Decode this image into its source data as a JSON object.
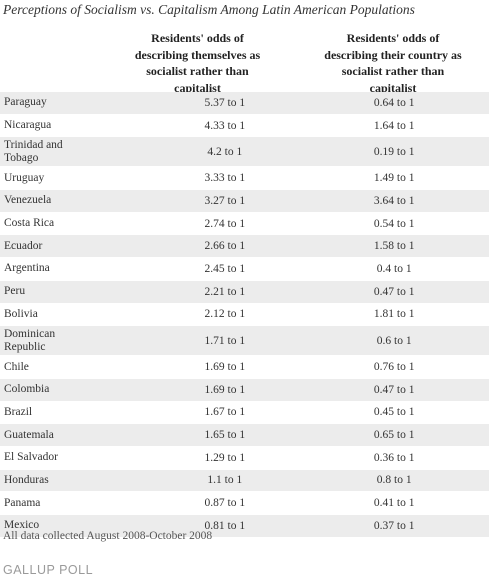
{
  "title": "Perceptions of Socialism vs. Capitalism Among Latin American Populations",
  "table": {
    "headers": [
      [
        "Residents' odds of",
        "describing themselves as",
        "socialist rather than",
        "capitalist"
      ],
      [
        "Residents' odds of",
        "describing their country as",
        "socialist rather than",
        "capitalist"
      ]
    ],
    "rows": [
      [
        "Paraguay",
        "5.37 to 1",
        "0.64 to 1"
      ],
      [
        "Nicaragua",
        "4.33 to 1",
        "1.64 to 1"
      ],
      [
        "Trinidad and Tobago",
        "4.2 to 1",
        "0.19 to 1"
      ],
      [
        "Uruguay",
        "3.33 to 1",
        "1.49 to 1"
      ],
      [
        "Venezuela",
        "3.27 to 1",
        "3.64 to 1"
      ],
      [
        "Costa Rica",
        "2.74 to 1",
        "0.54 to 1"
      ],
      [
        "Ecuador",
        "2.66 to 1",
        "1.58 to 1"
      ],
      [
        "Argentina",
        "2.45 to 1",
        "0.4 to 1"
      ],
      [
        "Peru",
        "2.21 to 1",
        "0.47 to 1"
      ],
      [
        "Bolivia",
        "2.12 to 1",
        "1.81 to 1"
      ],
      [
        "Dominican Republic",
        "1.71 to 1",
        "0.6 to 1"
      ],
      [
        "Chile",
        "1.69 to 1",
        "0.76 to 1"
      ],
      [
        "Colombia",
        "1.69 to 1",
        "0.47 to 1"
      ],
      [
        "Brazil",
        "1.67 to 1",
        "0.45 to 1"
      ],
      [
        "Guatemala",
        "1.65 to 1",
        "0.65 to 1"
      ],
      [
        "El Salvador",
        "1.29 to 1",
        "0.36 to 1"
      ],
      [
        "Honduras",
        "1.1 to 1",
        "0.8 to 1"
      ],
      [
        "Panama",
        "0.87 to 1",
        "0.41 to 1"
      ],
      [
        "Mexico",
        "0.81 to 1",
        "0.37 to 1"
      ]
    ]
  },
  "footnote": "All data collected August 2008-October 2008",
  "source": "GALLUP POLL"
}
